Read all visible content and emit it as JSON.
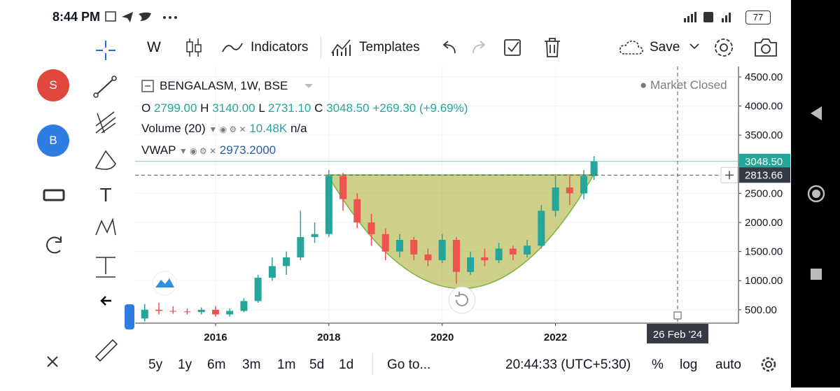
{
  "status_bar": {
    "time": "8:44 PM",
    "battery": "77"
  },
  "toolbar": {
    "interval": "W",
    "indicators": "Indicators",
    "templates": "Templates",
    "save": "Save"
  },
  "sidebar": {
    "avatars": [
      "S",
      "B"
    ]
  },
  "legend": {
    "symbol": "BENGALASM, 1W, BSE",
    "market_status": "Market Closed",
    "ohlc": [
      {
        "label": "O",
        "value": "2799.00"
      },
      {
        "label": "H",
        "value": "3140.00"
      },
      {
        "label": "L",
        "value": "2731.10"
      },
      {
        "label": "C",
        "value": "3048.50"
      }
    ],
    "change": "+269.30 (+9.69%)",
    "volume": {
      "label": "Volume (20)",
      "value": "10.48K",
      "extra": "n/a"
    },
    "vwap": {
      "label": "VWAP",
      "value": "2973.2000"
    }
  },
  "chart_data": {
    "type": "candlestick",
    "x": [
      2014.75,
      2015.0,
      2015.25,
      2015.5,
      2015.75,
      2016.0,
      2016.25,
      2016.5,
      2016.75,
      2017.0,
      2017.25,
      2017.5,
      2017.75,
      2018.0,
      2018.25,
      2018.5,
      2018.75,
      2019.0,
      2019.25,
      2019.5,
      2019.75,
      2020.0,
      2020.25,
      2020.5,
      2020.75,
      2021.0,
      2021.25,
      2021.5,
      2021.75,
      2022.0,
      2022.25,
      2022.5,
      2022.68
    ],
    "open": [
      350,
      500,
      480,
      470,
      460,
      500,
      420,
      480,
      650,
      1050,
      1250,
      1400,
      1750,
      1800,
      2800,
      2400,
      2000,
      1800,
      1500,
      1700,
      1450,
      1350,
      1700,
      1150,
      1400,
      1350,
      1550,
      1450,
      1600,
      2200,
      2600,
      2500,
      2799
    ],
    "high": [
      600,
      620,
      560,
      520,
      540,
      560,
      520,
      700,
      1100,
      1400,
      1500,
      2200,
      2000,
      2900,
      2850,
      2500,
      2150,
      1900,
      1800,
      1750,
      1550,
      1800,
      1750,
      1500,
      1550,
      1650,
      1600,
      1700,
      2300,
      2800,
      2800,
      2900,
      3140
    ],
    "low": [
      300,
      420,
      430,
      420,
      420,
      380,
      380,
      460,
      620,
      1000,
      1100,
      1350,
      1650,
      1750,
      2200,
      1900,
      1600,
      1350,
      1400,
      1350,
      1250,
      1300,
      950,
      1100,
      1250,
      1300,
      1350,
      1400,
      1550,
      2100,
      2300,
      2400,
      2731.1
    ],
    "close": [
      500,
      480,
      470,
      460,
      500,
      420,
      480,
      650,
      1050,
      1250,
      1400,
      1750,
      1800,
      2800,
      2400,
      2000,
      1800,
      1500,
      1700,
      1450,
      1350,
      1700,
      1150,
      1400,
      1350,
      1550,
      1450,
      1600,
      2200,
      2600,
      2500,
      2799,
      3048.5
    ],
    "up_color": "#26a69a",
    "down_color": "#ef5350",
    "xlim": [
      2014.58,
      2025.23
    ],
    "xticks": [
      2016,
      2018,
      2020,
      2022
    ],
    "ylim": [
      270,
      4680
    ],
    "yticks": [
      {
        "value": 500,
        "label": "500.00"
      },
      {
        "value": 1000,
        "label": "1000.00"
      },
      {
        "value": 1500,
        "label": "1500.00"
      },
      {
        "value": 2000,
        "label": "2000.00"
      },
      {
        "value": 2500,
        "label": "2500.00"
      },
      {
        "value": 3000,
        "label": "3000.00"
      },
      {
        "value": 3500,
        "label": "3500.00"
      },
      {
        "value": 4000,
        "label": "4000.00"
      },
      {
        "value": 4500,
        "label": "4500.00"
      }
    ],
    "grid": true,
    "last_price": {
      "value": 3048.5,
      "label": "3048.50"
    },
    "crosshair": {
      "value": 2813.66,
      "label": "2813.66",
      "date": "26 Feb '24"
    }
  },
  "bottom_bar": {
    "ranges": [
      "5y",
      "1y",
      "6m",
      "3m",
      "1m",
      "5d",
      "1d"
    ],
    "goto": "Go to...",
    "clock": "20:44:33 (UTC+5:30)",
    "percent": "%",
    "log": "log",
    "auto": "auto"
  }
}
